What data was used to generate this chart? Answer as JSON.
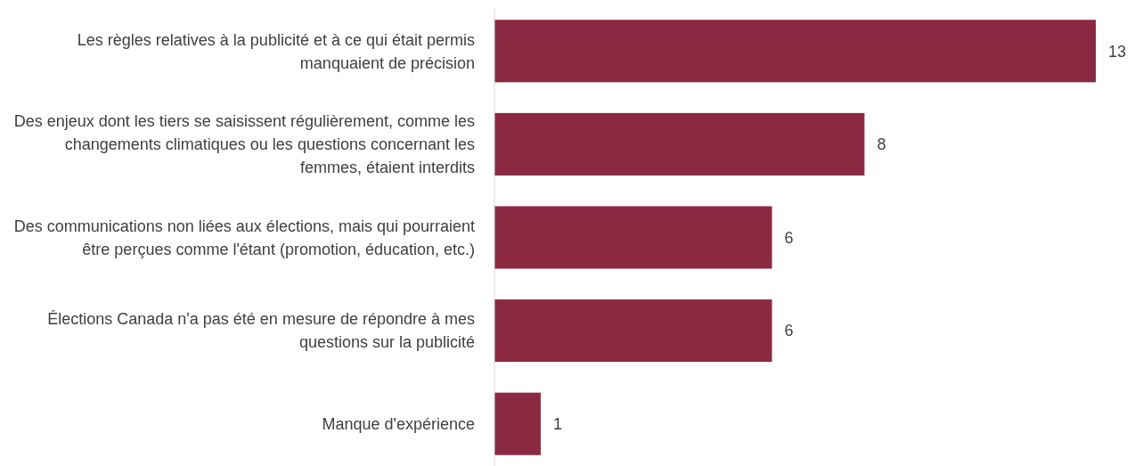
{
  "chart_data": {
    "type": "bar",
    "orientation": "horizontal",
    "categories": [
      "Les règles relatives à la publicité et à ce qui était permis manquaient de précision",
      "Des enjeux dont les tiers se saisissent régulièrement, comme les changements climatiques ou les questions concernant les femmes, étaient interdits",
      "Des communications non liées aux élections, mais qui pourraient être perçues comme l'étant (promotion, éducation, etc.)",
      "Élections Canada n'a pas été en mesure de répondre à mes questions sur la publicité",
      "Manque d'expérience"
    ],
    "values": [
      13,
      8,
      6,
      6,
      1
    ],
    "color": "#8b2942",
    "data_labels": true
  }
}
